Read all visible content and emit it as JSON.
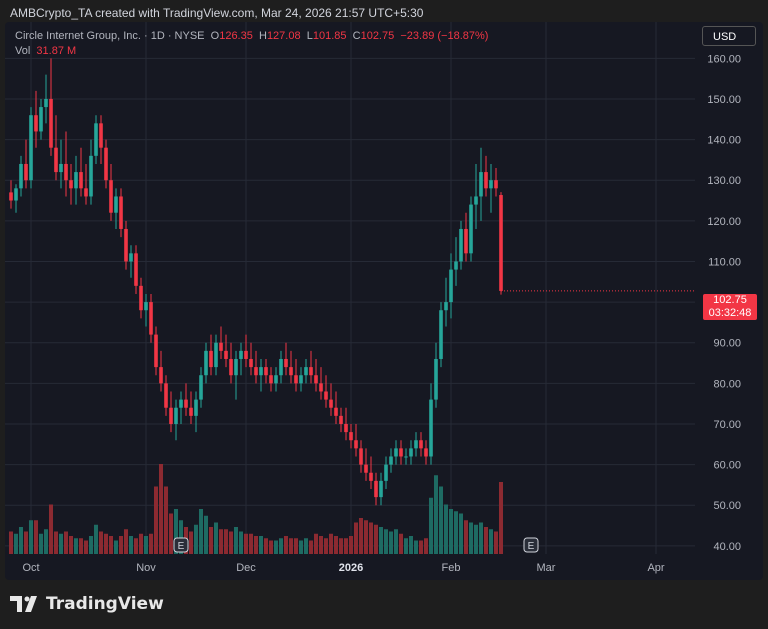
{
  "caption": "AMBCrypto_TA created with TradingView.com, Mar 24, 2026 21:57 UTC+5:30",
  "legend": {
    "symbol": "Circle Internet Group, Inc. · 1D · NYSE",
    "o_label": "O",
    "o_value": "126.35",
    "h_label": "H",
    "h_value": "127.08",
    "l_label": "L",
    "l_value": "101.85",
    "c_label": "C",
    "c_value": "102.75",
    "change": "−23.89 (−18.87%)",
    "vol_label": "Vol",
    "vol_value": "31.87 M"
  },
  "currency_button": "USD",
  "last_price": {
    "price": "102.75",
    "countdown": "03:32:48"
  },
  "brand": "TradingView",
  "colors": {
    "up": "#26a69a",
    "down": "#f23645",
    "up_vol": "#1e6b63",
    "down_vol": "#8c2a31",
    "grid": "#262a36",
    "axis_text": "#b2b5be"
  },
  "chart_data": {
    "type": "candlestick",
    "ylim": [
      38,
      165
    ],
    "y_ticks": [
      "40.00",
      "50.00",
      "60.00",
      "70.00",
      "80.00",
      "90.00",
      "100.00",
      "110.00",
      "120.00",
      "130.00",
      "140.00",
      "150.00",
      "160.00"
    ],
    "x_ticks": [
      {
        "label": "Oct",
        "i": 4
      },
      {
        "label": "Nov",
        "i": 27
      },
      {
        "label": "Dec",
        "i": 47
      },
      {
        "label": "2026",
        "i": 68
      },
      {
        "label": "Feb",
        "i": 88
      },
      {
        "label": "Mar",
        "i": 107
      },
      {
        "label": "Apr",
        "i": 129
      }
    ],
    "events": [
      {
        "label": "E",
        "i": 34
      },
      {
        "label": "E",
        "i": 104
      }
    ],
    "candles": [
      [
        127,
        130,
        123,
        125,
        0.1
      ],
      [
        125,
        129,
        122,
        128,
        0.09
      ],
      [
        128,
        136,
        126,
        134,
        0.12
      ],
      [
        134,
        140,
        128,
        130,
        0.1
      ],
      [
        130,
        148,
        128,
        146,
        0.15
      ],
      [
        146,
        152,
        138,
        142,
        0.15
      ],
      [
        142,
        150,
        140,
        148,
        0.09
      ],
      [
        148,
        156,
        144,
        150,
        0.11
      ],
      [
        150,
        160,
        136,
        138,
        0.22
      ],
      [
        138,
        146,
        130,
        132,
        0.1
      ],
      [
        132,
        140,
        128,
        134,
        0.09
      ],
      [
        134,
        142,
        126,
        130,
        0.1
      ],
      [
        130,
        134,
        124,
        128,
        0.08
      ],
      [
        128,
        136,
        124,
        132,
        0.07
      ],
      [
        132,
        138,
        126,
        128,
        0.07
      ],
      [
        128,
        134,
        124,
        126,
        0.06
      ],
      [
        126,
        140,
        124,
        136,
        0.08
      ],
      [
        136,
        146,
        134,
        144,
        0.13
      ],
      [
        144,
        146,
        134,
        138,
        0.1
      ],
      [
        138,
        140,
        128,
        130,
        0.09
      ],
      [
        130,
        134,
        120,
        122,
        0.08
      ],
      [
        122,
        128,
        118,
        126,
        0.06
      ],
      [
        126,
        128,
        116,
        118,
        0.08
      ],
      [
        118,
        120,
        108,
        110,
        0.11
      ],
      [
        110,
        114,
        106,
        112,
        0.08
      ],
      [
        112,
        114,
        102,
        104,
        0.07
      ],
      [
        104,
        106,
        96,
        98,
        0.09
      ],
      [
        98,
        102,
        94,
        100,
        0.08
      ],
      [
        100,
        102,
        90,
        92,
        0.09
      ],
      [
        92,
        94,
        82,
        84,
        0.3
      ],
      [
        84,
        88,
        78,
        80,
        0.4
      ],
      [
        80,
        82,
        72,
        74,
        0.3
      ],
      [
        74,
        78,
        68,
        70,
        0.18
      ],
      [
        70,
        76,
        66,
        74,
        0.2
      ],
      [
        74,
        78,
        70,
        76,
        0.15
      ],
      [
        76,
        80,
        72,
        74,
        0.12
      ],
      [
        74,
        78,
        70,
        72,
        0.1
      ],
      [
        72,
        78,
        68,
        76,
        0.13
      ],
      [
        76,
        84,
        74,
        82,
        0.2
      ],
      [
        82,
        90,
        80,
        88,
        0.17
      ],
      [
        88,
        92,
        82,
        84,
        0.12
      ],
      [
        84,
        92,
        82,
        90,
        0.14
      ],
      [
        90,
        94,
        86,
        88,
        0.11
      ],
      [
        88,
        92,
        84,
        86,
        0.11
      ],
      [
        86,
        90,
        80,
        82,
        0.1
      ],
      [
        82,
        88,
        76,
        86,
        0.12
      ],
      [
        86,
        90,
        82,
        88,
        0.1
      ],
      [
        88,
        92,
        84,
        86,
        0.09
      ],
      [
        86,
        90,
        82,
        84,
        0.09
      ],
      [
        84,
        88,
        80,
        82,
        0.08
      ],
      [
        82,
        86,
        78,
        84,
        0.08
      ],
      [
        84,
        86,
        80,
        82,
        0.07
      ],
      [
        82,
        84,
        78,
        80,
        0.06
      ],
      [
        80,
        84,
        78,
        82,
        0.06
      ],
      [
        82,
        88,
        80,
        86,
        0.07
      ],
      [
        86,
        90,
        82,
        84,
        0.08
      ],
      [
        84,
        88,
        80,
        82,
        0.07
      ],
      [
        82,
        86,
        78,
        80,
        0.07
      ],
      [
        80,
        84,
        78,
        82,
        0.06
      ],
      [
        82,
        86,
        80,
        84,
        0.07
      ],
      [
        84,
        88,
        80,
        82,
        0.06
      ],
      [
        82,
        86,
        78,
        80,
        0.09
      ],
      [
        80,
        84,
        76,
        78,
        0.08
      ],
      [
        78,
        82,
        74,
        76,
        0.07
      ],
      [
        76,
        80,
        72,
        74,
        0.09
      ],
      [
        74,
        78,
        70,
        72,
        0.08
      ],
      [
        72,
        74,
        68,
        70,
        0.07
      ],
      [
        70,
        74,
        66,
        68,
        0.07
      ],
      [
        68,
        70,
        64,
        66,
        0.08
      ],
      [
        66,
        70,
        62,
        64,
        0.14
      ],
      [
        64,
        66,
        58,
        60,
        0.16
      ],
      [
        60,
        64,
        56,
        58,
        0.15
      ],
      [
        58,
        62,
        54,
        56,
        0.14
      ],
      [
        56,
        58,
        50,
        52,
        0.13
      ],
      [
        52,
        58,
        50,
        56,
        0.12
      ],
      [
        56,
        62,
        54,
        60,
        0.11
      ],
      [
        60,
        64,
        58,
        62,
        0.1
      ],
      [
        62,
        66,
        60,
        64,
        0.11
      ],
      [
        64,
        66,
        60,
        62,
        0.09
      ],
      [
        62,
        64,
        60,
        62,
        0.07
      ],
      [
        62,
        66,
        60,
        64,
        0.08
      ],
      [
        64,
        68,
        62,
        66,
        0.06
      ],
      [
        66,
        68,
        62,
        64,
        0.06
      ],
      [
        64,
        66,
        60,
        62,
        0.07
      ],
      [
        62,
        80,
        60,
        76,
        0.25
      ],
      [
        76,
        90,
        74,
        86,
        0.35
      ],
      [
        86,
        100,
        84,
        98,
        0.3
      ],
      [
        98,
        106,
        94,
        100,
        0.22
      ],
      [
        100,
        112,
        96,
        108,
        0.2
      ],
      [
        108,
        116,
        104,
        110,
        0.19
      ],
      [
        110,
        120,
        108,
        118,
        0.18
      ],
      [
        118,
        122,
        110,
        112,
        0.15
      ],
      [
        112,
        126,
        110,
        124,
        0.14
      ],
      [
        124,
        134,
        118,
        126,
        0.13
      ],
      [
        126,
        138,
        120,
        132,
        0.14
      ],
      [
        132,
        136,
        126,
        128,
        0.12
      ],
      [
        128,
        134,
        122,
        130,
        0.11
      ],
      [
        130,
        133,
        126,
        128,
        0.1
      ],
      [
        126.35,
        127.08,
        101.85,
        102.75,
        0.32
      ]
    ]
  }
}
